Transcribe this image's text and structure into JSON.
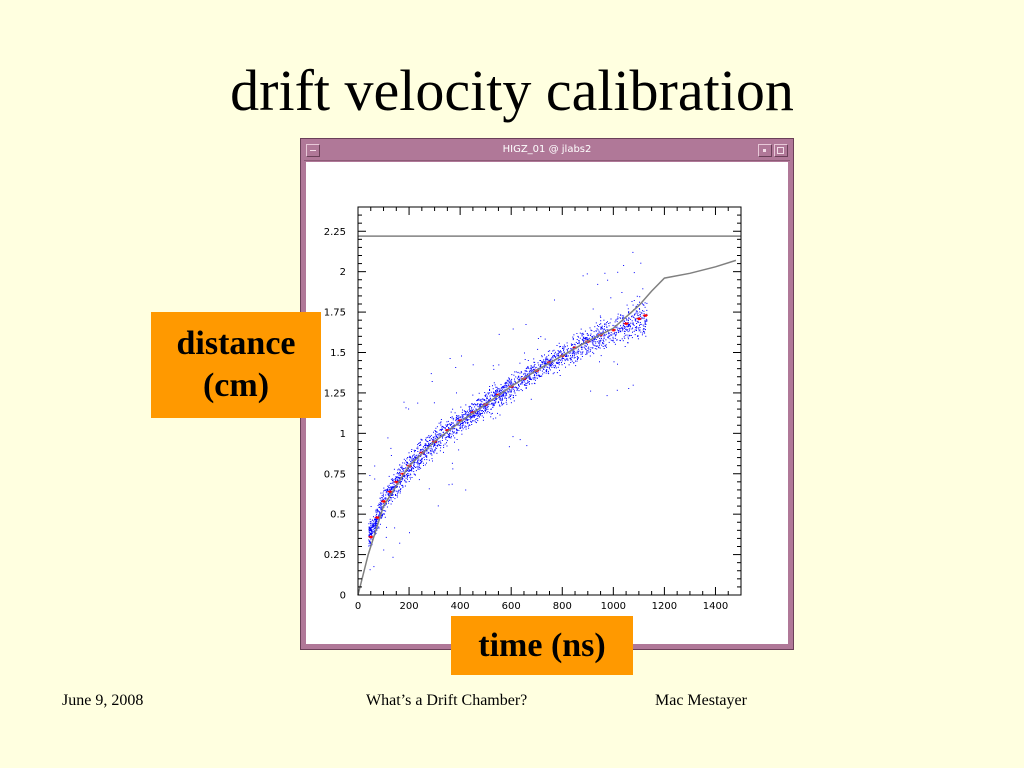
{
  "slide": {
    "title": "drift velocity calibration",
    "footer": {
      "date": "June 9, 2008",
      "center": "What’s a Drift Chamber?",
      "author": "Mac Mestayer"
    }
  },
  "window": {
    "title": "HIGZ_01 @ jlabs2",
    "icons": [
      "menu-icon",
      "minimize-icon",
      "maximize-icon"
    ]
  },
  "colors": {
    "background": "#ffffe0",
    "label_box": "#ff9900",
    "window_frame": "#b07898",
    "scatter_points": "#0000ff",
    "profile_points": "#ff0000",
    "fit_line": "#808080"
  },
  "chart_data": {
    "type": "scatter",
    "title": "",
    "xlabel": "time (ns)",
    "ylabel": "distance (cm)",
    "xlim": [
      0,
      1500
    ],
    "ylim": [
      0,
      2.4
    ],
    "x_ticks": [
      0,
      200,
      400,
      600,
      800,
      1000,
      1200,
      1400
    ],
    "x_tick_labels": [
      "0",
      "200",
      "400",
      "600",
      "800",
      "1000",
      "1200",
      "1400"
    ],
    "y_ticks": [
      0,
      0.25,
      0.5,
      0.75,
      1,
      1.25,
      1.5,
      1.75,
      2,
      2.25
    ],
    "y_tick_labels": [
      "0",
      "0.25",
      "0.5",
      "0.75",
      "1",
      "1.25",
      "1.5",
      "1.75",
      "2",
      "2.25"
    ],
    "grid": false,
    "reference_line": {
      "y": 2.22
    },
    "series": [
      {
        "kind": "scatter-band",
        "color": "#0000ff",
        "x": [
          50,
          100,
          150,
          200,
          250,
          300,
          350,
          400,
          450,
          500,
          550,
          600,
          650,
          700,
          750,
          800,
          850,
          900,
          950,
          1000,
          1050,
          1100
        ],
        "y": [
          0.38,
          0.58,
          0.7,
          0.8,
          0.88,
          0.95,
          1.02,
          1.08,
          1.13,
          1.18,
          1.24,
          1.29,
          1.34,
          1.39,
          1.44,
          1.48,
          1.53,
          1.57,
          1.61,
          1.64,
          1.68,
          1.71
        ],
        "spread": [
          0.06,
          0.07,
          0.07,
          0.07,
          0.07,
          0.07,
          0.07,
          0.06,
          0.06,
          0.06,
          0.06,
          0.06,
          0.06,
          0.06,
          0.06,
          0.06,
          0.07,
          0.07,
          0.08,
          0.08,
          0.09,
          0.1
        ]
      },
      {
        "kind": "profile",
        "color": "#ff0000",
        "x": [
          50,
          75,
          100,
          125,
          150,
          175,
          200,
          250,
          300,
          350,
          400,
          450,
          500,
          550,
          600,
          650,
          700,
          750,
          800,
          850,
          900,
          950,
          1000,
          1050,
          1100,
          1125
        ],
        "y": [
          0.36,
          0.48,
          0.58,
          0.64,
          0.7,
          0.75,
          0.8,
          0.88,
          0.95,
          1.02,
          1.08,
          1.13,
          1.18,
          1.24,
          1.29,
          1.34,
          1.39,
          1.44,
          1.48,
          1.53,
          1.57,
          1.61,
          1.64,
          1.68,
          1.71,
          1.73
        ]
      },
      {
        "kind": "fit-line",
        "color": "#808080",
        "x": [
          0,
          40,
          100,
          200,
          300,
          400,
          500,
          600,
          700,
          800,
          900,
          1000,
          1100,
          1150,
          1200,
          1300,
          1400,
          1480
        ],
        "y": [
          0,
          0.25,
          0.55,
          0.8,
          0.95,
          1.07,
          1.18,
          1.29,
          1.39,
          1.48,
          1.57,
          1.65,
          1.79,
          1.88,
          1.96,
          1.99,
          2.03,
          2.07
        ]
      }
    ]
  },
  "labels": {
    "y_box": [
      "distance",
      "(cm)"
    ],
    "x_box": "time (ns)"
  }
}
